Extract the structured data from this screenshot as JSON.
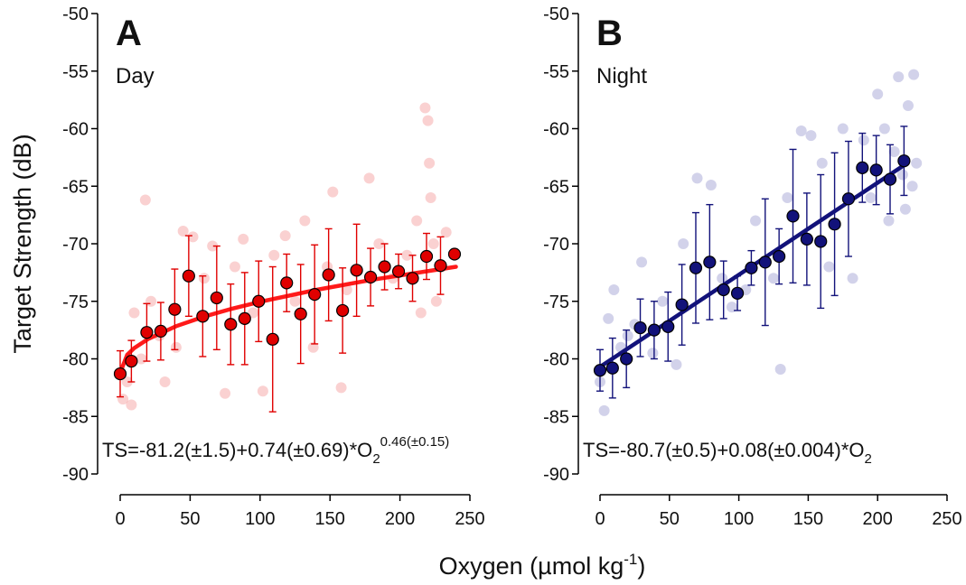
{
  "shared": {
    "y_label": "Target Strength (dB)",
    "x_label": {
      "text": "Oxygen (µmol kg",
      "superscript": "-1",
      "end": ")"
    }
  },
  "chart_data": [
    {
      "type": "scatter",
      "panel_label": "A",
      "subtitle": "Day",
      "equation": {
        "text": "TS=-81.2(±1.5)+0.74(±0.69)*O",
        "subscript": "2",
        "superscript": "0.46(±0.15)"
      },
      "xlim": [
        0,
        250
      ],
      "xticks": [
        0,
        50,
        100,
        150,
        200,
        250
      ],
      "ylim": [
        -90,
        -50
      ],
      "yticks": [
        -50,
        -55,
        -60,
        -65,
        -70,
        -75,
        -80,
        -85,
        -90
      ],
      "raw": {
        "color": "#f49a9a",
        "x": [
          2,
          5,
          8,
          10,
          15,
          18,
          22,
          28,
          32,
          40,
          45,
          52,
          60,
          66,
          75,
          82,
          88,
          95,
          102,
          110,
          118,
          125,
          132,
          138,
          148,
          152,
          158,
          162,
          178,
          185,
          195,
          205,
          212,
          215,
          218,
          220,
          221,
          222,
          224,
          226,
          230,
          233
        ],
        "values": [
          -83.5,
          -82,
          -84,
          -76,
          -80,
          -66.2,
          -75,
          -78,
          -82,
          -79,
          -68.9,
          -69.4,
          -73,
          -70.2,
          -83,
          -72,
          -69.6,
          -76,
          -82.8,
          -71,
          -69.3,
          -75,
          -68,
          -79,
          -72,
          -65.5,
          -82.5,
          -74,
          -64.3,
          -70,
          -73,
          -71,
          -68,
          -76,
          -58.2,
          -59.3,
          -63,
          -66,
          -70,
          -75,
          -72,
          -69
        ]
      },
      "binned": {
        "color": "#e00000",
        "x": [
          0,
          8,
          19,
          29,
          39,
          49,
          59,
          69,
          79,
          89,
          99,
          109,
          119,
          129,
          139,
          149,
          159,
          169,
          179,
          189,
          199,
          209,
          219,
          229,
          239
        ],
        "values": [
          -81.3,
          -80.2,
          -77.7,
          -77.6,
          -75.7,
          -72.8,
          -76.3,
          -74.7,
          -77,
          -76.5,
          -75,
          -78.3,
          -73.4,
          -76.1,
          -74.4,
          -72.7,
          -75.8,
          -72.3,
          -72.9,
          -72,
          -72.4,
          -73,
          -71.1,
          -71.9,
          -70.9
        ],
        "errors": [
          2,
          1.8,
          2.5,
          2.5,
          3.5,
          3.5,
          3.5,
          4.5,
          3.5,
          4,
          3.5,
          6.3,
          2.5,
          4.3,
          4.3,
          4,
          3.7,
          4,
          2.5,
          2,
          1.5,
          2,
          2,
          2.5,
          0
        ]
      },
      "fit": {
        "color": "#ff1a1a",
        "x": [
          0,
          5,
          10,
          20,
          40,
          60,
          80,
          100,
          140,
          180,
          240
        ],
        "values": [
          -81.2,
          -79.65,
          -79.07,
          -78.27,
          -77.16,
          -76.33,
          -75.64,
          -75.04,
          -74.01,
          -73.13,
          -72.0
        ]
      }
    },
    {
      "type": "scatter",
      "panel_label": "B",
      "subtitle": "Night",
      "equation": {
        "text": "TS=-80.7(±0.5)+0.08(±0.004)*O",
        "subscript": "2"
      },
      "xlim": [
        0,
        250
      ],
      "xticks": [
        0,
        50,
        100,
        150,
        200,
        250
      ],
      "ylim": [
        -90,
        -50
      ],
      "yticks": [
        -50,
        -55,
        -60,
        -65,
        -70,
        -75,
        -80,
        -85,
        -90
      ],
      "raw": {
        "color": "#9b9bd0",
        "x": [
          0,
          3,
          6,
          10,
          15,
          20,
          25,
          30,
          38,
          45,
          55,
          60,
          70,
          80,
          88,
          95,
          105,
          112,
          125,
          130,
          135,
          145,
          152,
          160,
          165,
          175,
          182,
          190,
          195,
          200,
          205,
          208,
          212,
          215,
          218,
          220,
          222,
          225,
          226,
          228
        ],
        "values": [
          -82,
          -84.5,
          -76.5,
          -74,
          -79,
          -78,
          -77,
          -71.6,
          -79.5,
          -75,
          -80.5,
          -70,
          -64.3,
          -64.9,
          -73,
          -75.5,
          -74,
          -68,
          -73,
          -80.9,
          -66,
          -60.2,
          -60.6,
          -63,
          -72,
          -60,
          -73,
          -61,
          -66,
          -57,
          -60,
          -68,
          -62,
          -55.5,
          -64,
          -67,
          -58,
          -65,
          -55.3,
          -63
        ]
      },
      "binned": {
        "color": "#12127a",
        "x": [
          0,
          9,
          19,
          29,
          39,
          49,
          59,
          69,
          79,
          89,
          99,
          109,
          119,
          129,
          139,
          149,
          159,
          169,
          179,
          189,
          199,
          209,
          219
        ],
        "values": [
          -81,
          -80.8,
          -80,
          -77.3,
          -77.5,
          -77.2,
          -75.3,
          -72.1,
          -71.6,
          -74,
          -74.3,
          -72.1,
          -71.6,
          -71.1,
          -67.6,
          -69.6,
          -69.8,
          -68.3,
          -66.1,
          -63.4,
          -63.6,
          -64.4,
          -62.8
        ],
        "errors": [
          1.8,
          2.6,
          2.5,
          2.5,
          2.5,
          3,
          3.5,
          4.8,
          5,
          2.5,
          1.5,
          1.5,
          5.5,
          2.4,
          5.8,
          4,
          5.8,
          6.2,
          5,
          3,
          3,
          3,
          3
        ]
      },
      "fit": {
        "color": "#12127a",
        "x": [
          0,
          220
        ],
        "values": [
          -80.7,
          -63.1
        ]
      }
    }
  ]
}
